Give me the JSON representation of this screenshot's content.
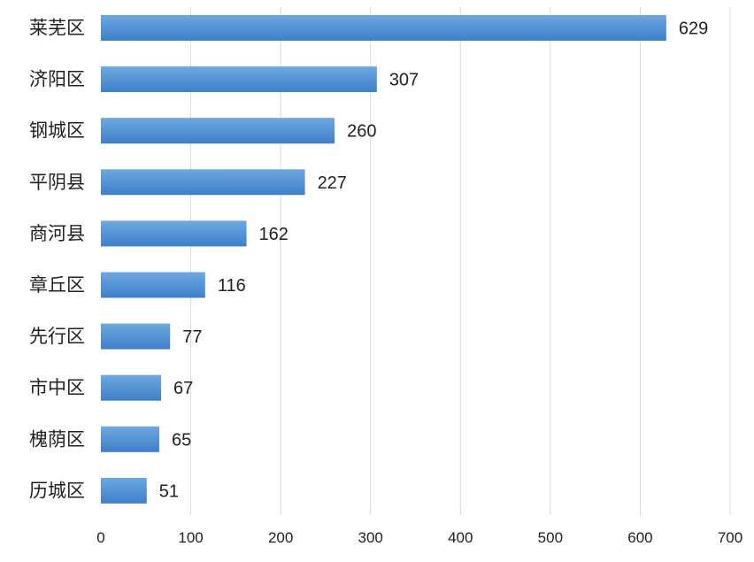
{
  "chart_data": {
    "type": "bar",
    "orientation": "horizontal",
    "categories": [
      "莱芜区",
      "济阳区",
      "钢城区",
      "平阴县",
      "商河县",
      "章丘区",
      "先行区",
      "市中区",
      "槐荫区",
      "历城区"
    ],
    "values": [
      629,
      307,
      260,
      227,
      162,
      116,
      77,
      67,
      65,
      51
    ],
    "value_labels": [
      "629",
      "307",
      "260",
      "227",
      "162",
      "116",
      "77",
      "67",
      "65",
      "51"
    ],
    "xlim": [
      0,
      700
    ],
    "x_ticks": [
      "0",
      "100",
      "200",
      "300",
      "400",
      "500",
      "600",
      "700"
    ],
    "grid": "vertical",
    "title": "",
    "xlabel": "",
    "ylabel": ""
  },
  "colors": {
    "bar_top": "#6fa8e0",
    "bar_bottom": "#3d7fc9",
    "grid": "#d9d9d9",
    "text": "#222222"
  }
}
